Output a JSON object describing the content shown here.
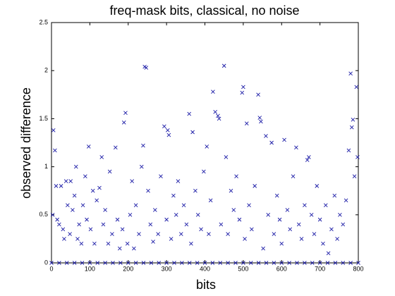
{
  "chart_data": {
    "type": "scatter",
    "title": "freq-mask bits, classical, no noise",
    "xlabel": "bits",
    "ylabel": "observed difference",
    "color": "#1a1aa6",
    "x": [
      5,
      9,
      3,
      12,
      15,
      20,
      25,
      30,
      33,
      38,
      42,
      48,
      50,
      55,
      60,
      64,
      68,
      72,
      78,
      82,
      88,
      92,
      97,
      102,
      108,
      112,
      118,
      125,
      131,
      135,
      140,
      148,
      152,
      158,
      167,
      172,
      178,
      185,
      189,
      193,
      198,
      205,
      210,
      215,
      220,
      228,
      235,
      239,
      243,
      247,
      252,
      258,
      265,
      270,
      278,
      285,
      294,
      300,
      303,
      306,
      312,
      318,
      325,
      330,
      338,
      345,
      352,
      359,
      364,
      368,
      375,
      382,
      390,
      397,
      405,
      410,
      415,
      421,
      427,
      434,
      437,
      442,
      450,
      455,
      460,
      468,
      475,
      482,
      490,
      497,
      500,
      504,
      509,
      515,
      522,
      530,
      539,
      543,
      546,
      552,
      559,
      565,
      574,
      580,
      588,
      595,
      600,
      607,
      615,
      622,
      630,
      638,
      645,
      652,
      660,
      667,
      671,
      678,
      685,
      692,
      700,
      708,
      715,
      722,
      730,
      738,
      745,
      752,
      760,
      768,
      775,
      780,
      783,
      786,
      790,
      795,
      798,
      0,
      20,
      40,
      60,
      80,
      100,
      120,
      140,
      160,
      180,
      200,
      220,
      240,
      260,
      280,
      300,
      320,
      340,
      360,
      380,
      400,
      420,
      440,
      460,
      480,
      500,
      520,
      540,
      560,
      580,
      600,
      620,
      640,
      660,
      680,
      700,
      720,
      740,
      760,
      780,
      800
    ],
    "values": [
      1.38,
      1.17,
      0.5,
      0.8,
      0.45,
      0.4,
      0.8,
      0.35,
      0.25,
      0.85,
      0.6,
      0.3,
      0.85,
      0.55,
      0.7,
      1.0,
      0.25,
      0.4,
      0.2,
      0.6,
      0.9,
      0.45,
      1.21,
      0.35,
      0.75,
      0.2,
      0.65,
      0.78,
      1.1,
      0.4,
      0.55,
      0.2,
      0.95,
      0.3,
      1.2,
      0.45,
      0.15,
      0.35,
      1.46,
      1.56,
      0.2,
      0.5,
      0.85,
      0.15,
      0.6,
      0.3,
      1.0,
      1.22,
      2.04,
      2.03,
      0.75,
      0.4,
      0.22,
      0.55,
      0.3,
      0.9,
      1.42,
      0.45,
      1.38,
      1.33,
      0.25,
      0.7,
      0.5,
      0.85,
      0.3,
      0.6,
      0.4,
      1.55,
      0.2,
      1.36,
      0.75,
      0.5,
      0.35,
      0.95,
      1.21,
      0.3,
      0.65,
      1.78,
      1.57,
      1.53,
      1.5,
      0.4,
      2.05,
      1.1,
      0.3,
      0.75,
      0.55,
      0.9,
      0.45,
      1.77,
      1.83,
      0.25,
      1.45,
      0.6,
      0.35,
      0.8,
      1.75,
      1.51,
      1.47,
      0.15,
      1.32,
      0.5,
      1.25,
      0.3,
      0.7,
      0.45,
      0.2,
      1.28,
      0.55,
      0.35,
      0.9,
      1.2,
      0.4,
      0.25,
      0.6,
      1.07,
      1.1,
      0.5,
      0.3,
      0.8,
      0.45,
      0.2,
      0.6,
      0.1,
      0.35,
      0.7,
      0.25,
      0.5,
      0.4,
      0.65,
      1.17,
      1.97,
      1.41,
      1.49,
      0.9,
      1.83,
      1.1,
      0,
      0,
      0,
      0,
      0,
      0,
      0,
      0,
      0,
      0,
      0,
      0,
      0,
      0,
      0,
      0,
      0,
      0,
      0,
      0,
      0,
      0,
      0,
      0,
      0,
      0,
      0,
      0,
      0,
      0,
      0,
      0,
      0,
      0,
      0,
      0,
      0,
      0,
      0,
      0,
      0
    ],
    "xlim": [
      0,
      800
    ],
    "xticks": [
      0,
      100,
      200,
      300,
      400,
      500,
      600,
      700,
      800
    ],
    "ylim": [
      0,
      2.5
    ],
    "yticks": [
      0,
      0.5,
      1,
      1.5,
      2,
      2.5
    ]
  }
}
